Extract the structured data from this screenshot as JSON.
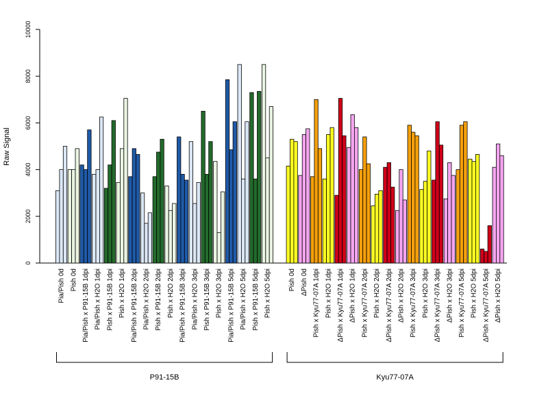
{
  "chart_data": {
    "type": "bar",
    "ylabel": "Raw Signal",
    "ylim": [
      0,
      10000
    ],
    "yticks": [
      "0",
      "2000",
      "4000",
      "6000",
      "8000",
      "10000"
    ],
    "grid": false,
    "bars_per_category": 3,
    "categories": [
      "Pia/Pish 0d",
      "Pish 0d",
      "Pia/Pish x P91-15B 1dpi",
      "Pia/Pish x H2O 1dpi",
      "Pish x P91-15B 1dpi",
      "Pish x H2O 1dpi",
      "Pia/Pish x P91-15B 2dpi",
      "Pia/Pish x H2O 2dpi",
      "Pish x P91-15B 2dpi",
      "Pish x H2O 2dpi",
      "Pia/Pish x P91-15B 3dpi",
      "Pia/Pish x H2O 3dpi",
      "Pish x P91-15B 3dpi",
      "Pish x H2O 3dpi",
      "Pia/Pish x P91-15B 5dpi",
      "Pia/Pish x H2O 5dpi",
      "Pish x P91-15B 5dpi",
      "Pish x H2O 5dpi",
      "Pish 0d",
      "ΔPish 0d",
      "Pish x Kyu77-07A 1dpi",
      "Pish x H2O 1dpi",
      "ΔPish x Kyu77-07A 1dpi",
      "ΔPish x H2O 1dpi",
      "Pish x Kyu77-07A 2dpi",
      "Pish x H2O 2dpi",
      "ΔPish x Kyu77-07A 2dpi",
      "ΔPish x H2O 2dpi",
      "Pish x Kyu77-07A 3dpi",
      "Pish x H2O 3dpi",
      "ΔPish x Kyu77-07A 3dpi",
      "ΔPish x H2O 3dpi",
      "Pish x Kyu77-07A 5dpi",
      "Pish x H2O 5dpi",
      "ΔPish x Kyu77-07A 5dpi",
      "ΔPish x H2O 5dpi"
    ],
    "values": [
      [
        3100,
        4000,
        5000
      ],
      [
        4000,
        4000,
        4900
      ],
      [
        4200,
        4000,
        5700
      ],
      [
        3800,
        4000,
        6250
      ],
      [
        3200,
        4200,
        6100
      ],
      [
        3450,
        4900,
        7050
      ],
      [
        3700,
        4900,
        4650
      ],
      [
        3000,
        1700,
        2150
      ],
      [
        3700,
        4750,
        5300
      ],
      [
        3300,
        2250,
        2550
      ],
      [
        5400,
        3800,
        3550
      ],
      [
        5200,
        2550,
        3450
      ],
      [
        6500,
        3800,
        5200
      ],
      [
        4350,
        1300,
        3050
      ],
      [
        7850,
        4850,
        6050
      ],
      [
        8500,
        3600,
        6050
      ],
      [
        7300,
        3600,
        7350
      ],
      [
        8500,
        4500,
        6700
      ],
      [
        4150,
        5300,
        5200
      ],
      [
        3750,
        5500,
        5750
      ],
      [
        3700,
        7000,
        4900
      ],
      [
        3600,
        5500,
        5800
      ],
      [
        2900,
        7050,
        5450
      ],
      [
        4950,
        6350,
        5800
      ],
      [
        4000,
        5400,
        4250
      ],
      [
        2450,
        2950,
        3100
      ],
      [
        4100,
        4300,
        3250
      ],
      [
        2250,
        4000,
        2700
      ],
      [
        5900,
        5600,
        5450
      ],
      [
        3150,
        3500,
        4800
      ],
      [
        3550,
        6050,
        5050
      ],
      [
        2750,
        4300,
        3750
      ],
      [
        4000,
        5900,
        6050
      ],
      [
        4450,
        4350,
        4650
      ],
      [
        600,
        500,
        1600
      ],
      [
        4100,
        5100,
        4600
      ]
    ],
    "category_colors": [
      "#dbe7f5",
      "#e9f4e2",
      "#1f5aa8",
      "#dbe7f5",
      "#236b2c",
      "#e9f4e2",
      "#1f5aa8",
      "#dbe7f5",
      "#236b2c",
      "#e9f4e2",
      "#1f5aa8",
      "#dbe7f5",
      "#236b2c",
      "#e9f4e2",
      "#1f5aa8",
      "#dbe7f5",
      "#236b2c",
      "#e9f4e2",
      "#ffff22",
      "#f5a5f0",
      "#f5a00c",
      "#ffff22",
      "#d0001a",
      "#f5a5f0",
      "#f5a00c",
      "#ffff22",
      "#d0001a",
      "#f5a5f0",
      "#f5a00c",
      "#ffff22",
      "#d0001a",
      "#f5a5f0",
      "#f5a00c",
      "#ffff22",
      "#d0001a",
      "#f5a5f0"
    ],
    "groups": [
      {
        "label": "P91-15B",
        "start": 0,
        "end": 17
      },
      {
        "label": "Kyu77-07A",
        "start": 18,
        "end": 35
      }
    ]
  }
}
